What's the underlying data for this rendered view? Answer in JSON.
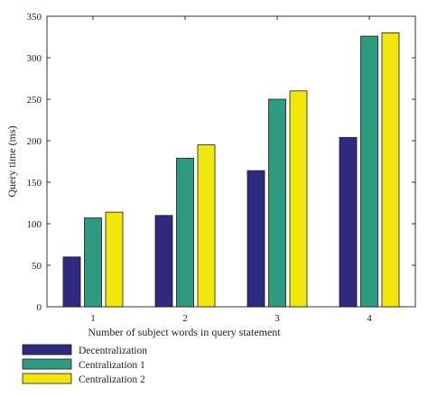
{
  "chart_data": {
    "type": "bar",
    "categories": [
      "1",
      "2",
      "3",
      "4"
    ],
    "series": [
      {
        "name": "Decentralization",
        "color": "#2e2a7e",
        "values": [
          60,
          110,
          164,
          204
        ]
      },
      {
        "name": "Centralization 1",
        "color": "#2e9b80",
        "values": [
          107,
          179,
          250,
          326
        ]
      },
      {
        "name": "Centralization 2",
        "color": "#f2e70c",
        "values": [
          114,
          195,
          260,
          330
        ]
      }
    ],
    "title": "",
    "xlabel": "Number of subject words in query statement",
    "ylabel": "Query time (ms)",
    "ylim": [
      0,
      350
    ],
    "yticks": [
      0,
      50,
      100,
      150,
      200,
      250,
      300,
      350
    ],
    "grid": false,
    "legend_position": "bottom-left"
  }
}
